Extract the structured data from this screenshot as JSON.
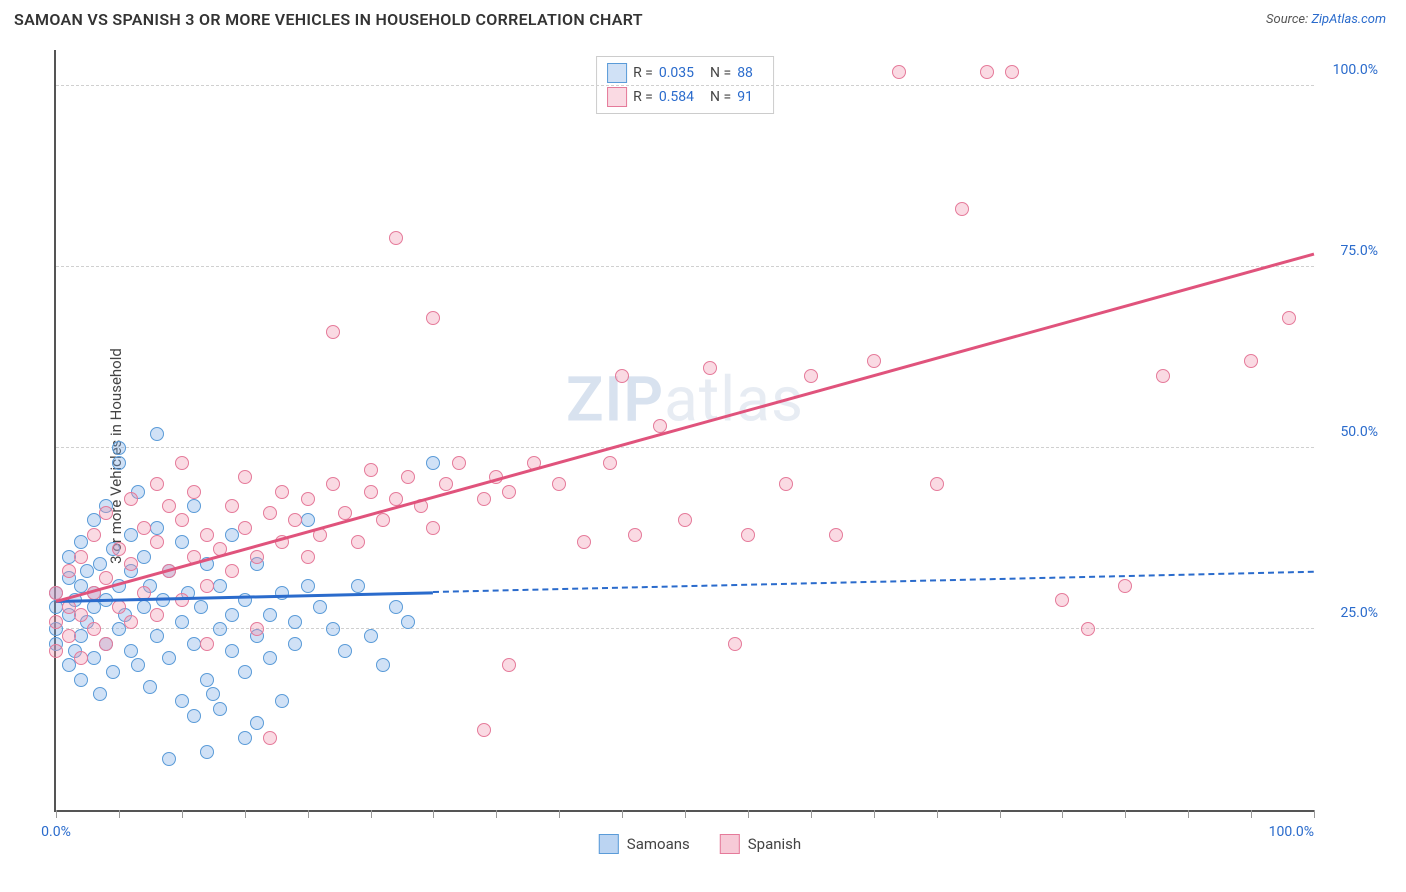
{
  "title": "SAMOAN VS SPANISH 3 OR MORE VEHICLES IN HOUSEHOLD CORRELATION CHART",
  "source_label": "Source: ",
  "source_name": "ZipAtlas.com",
  "ylabel": "3 or more Vehicles in Household",
  "watermark_a": "ZIP",
  "watermark_b": "atlas",
  "chart": {
    "type": "scatter",
    "xlim": [
      0,
      100
    ],
    "ylim": [
      0,
      105
    ],
    "xtick_positions": [
      0,
      5,
      10,
      15,
      20,
      25,
      30,
      35,
      40,
      45,
      50,
      55,
      60,
      65,
      70,
      75,
      80,
      85,
      90,
      95,
      100
    ],
    "xtick_labels": {
      "0": "0.0%",
      "100": "100.0%"
    },
    "ygrid": [
      25,
      50,
      75,
      100
    ],
    "ytick_labels": {
      "25": "25.0%",
      "50": "50.0%",
      "75": "75.0%",
      "100": "100.0%"
    },
    "background": "#ffffff",
    "grid_color": "#d0d0d0",
    "axis_color": "#555555",
    "marker_radius": 7,
    "marker_stroke": 1.5,
    "series": [
      {
        "name": "Samoans",
        "fill": "rgba(120,170,230,0.35)",
        "stroke": "#5a9bd8",
        "R": "0.035",
        "N": "88",
        "trend": {
          "x1": 0,
          "y1": 29,
          "x2": 100,
          "y2": 33,
          "solid_until": 30,
          "color": "#2a6bcc"
        },
        "points": [
          [
            0,
            23
          ],
          [
            0,
            25
          ],
          [
            0,
            28
          ],
          [
            0,
            30
          ],
          [
            1,
            20
          ],
          [
            1,
            27
          ],
          [
            1,
            32
          ],
          [
            1,
            35
          ],
          [
            1.5,
            22
          ],
          [
            1.5,
            29
          ],
          [
            2,
            18
          ],
          [
            2,
            24
          ],
          [
            2,
            31
          ],
          [
            2,
            37
          ],
          [
            2.5,
            26
          ],
          [
            2.5,
            33
          ],
          [
            3,
            21
          ],
          [
            3,
            28
          ],
          [
            3,
            30
          ],
          [
            3,
            40
          ],
          [
            3.5,
            16
          ],
          [
            3.5,
            34
          ],
          [
            4,
            23
          ],
          [
            4,
            29
          ],
          [
            4,
            42
          ],
          [
            4.5,
            19
          ],
          [
            4.5,
            36
          ],
          [
            5,
            25
          ],
          [
            5,
            31
          ],
          [
            5,
            48
          ],
          [
            5,
            50
          ],
          [
            5.5,
            27
          ],
          [
            6,
            22
          ],
          [
            6,
            33
          ],
          [
            6,
            38
          ],
          [
            6.5,
            20
          ],
          [
            6.5,
            44
          ],
          [
            7,
            28
          ],
          [
            7,
            35
          ],
          [
            7.5,
            17
          ],
          [
            7.5,
            31
          ],
          [
            8,
            24
          ],
          [
            8,
            39
          ],
          [
            8,
            52
          ],
          [
            8.5,
            29
          ],
          [
            9,
            21
          ],
          [
            9,
            33
          ],
          [
            9,
            7
          ],
          [
            10,
            26
          ],
          [
            10,
            37
          ],
          [
            10,
            15
          ],
          [
            10.5,
            30
          ],
          [
            11,
            23
          ],
          [
            11,
            42
          ],
          [
            11,
            13
          ],
          [
            11.5,
            28
          ],
          [
            12,
            34
          ],
          [
            12,
            18
          ],
          [
            12,
            8
          ],
          [
            12.5,
            16
          ],
          [
            13,
            25
          ],
          [
            13,
            31
          ],
          [
            13,
            14
          ],
          [
            14,
            22
          ],
          [
            14,
            27
          ],
          [
            14,
            38
          ],
          [
            15,
            19
          ],
          [
            15,
            29
          ],
          [
            15,
            10
          ],
          [
            16,
            24
          ],
          [
            16,
            34
          ],
          [
            16,
            12
          ],
          [
            17,
            21
          ],
          [
            17,
            27
          ],
          [
            18,
            30
          ],
          [
            18,
            15
          ],
          [
            19,
            26
          ],
          [
            19,
            23
          ],
          [
            20,
            40
          ],
          [
            20,
            31
          ],
          [
            21,
            28
          ],
          [
            22,
            25
          ],
          [
            23,
            22
          ],
          [
            24,
            31
          ],
          [
            25,
            24
          ],
          [
            26,
            20
          ],
          [
            27,
            28
          ],
          [
            28,
            26
          ],
          [
            30,
            48
          ]
        ]
      },
      {
        "name": "Spanish",
        "fill": "rgba(240,150,175,0.35)",
        "stroke": "#e57a9a",
        "R": "0.584",
        "N": "91",
        "trend": {
          "x1": 0,
          "y1": 29,
          "x2": 100,
          "y2": 77,
          "solid_until": 100,
          "color": "#e0537c"
        },
        "points": [
          [
            0,
            22
          ],
          [
            0,
            26
          ],
          [
            0,
            30
          ],
          [
            1,
            24
          ],
          [
            1,
            28
          ],
          [
            1,
            33
          ],
          [
            2,
            21
          ],
          [
            2,
            27
          ],
          [
            2,
            35
          ],
          [
            3,
            25
          ],
          [
            3,
            30
          ],
          [
            3,
            38
          ],
          [
            4,
            23
          ],
          [
            4,
            32
          ],
          [
            4,
            41
          ],
          [
            5,
            28
          ],
          [
            5,
            36
          ],
          [
            6,
            26
          ],
          [
            6,
            34
          ],
          [
            6,
            43
          ],
          [
            7,
            30
          ],
          [
            7,
            39
          ],
          [
            8,
            27
          ],
          [
            8,
            37
          ],
          [
            8,
            45
          ],
          [
            9,
            33
          ],
          [
            9,
            42
          ],
          [
            10,
            29
          ],
          [
            10,
            40
          ],
          [
            10,
            48
          ],
          [
            11,
            35
          ],
          [
            11,
            44
          ],
          [
            12,
            31
          ],
          [
            12,
            38
          ],
          [
            12,
            23
          ],
          [
            13,
            36
          ],
          [
            14,
            33
          ],
          [
            14,
            42
          ],
          [
            15,
            39
          ],
          [
            15,
            46
          ],
          [
            16,
            35
          ],
          [
            16,
            25
          ],
          [
            17,
            41
          ],
          [
            17,
            10
          ],
          [
            18,
            37
          ],
          [
            18,
            44
          ],
          [
            19,
            40
          ],
          [
            20,
            35
          ],
          [
            20,
            43
          ],
          [
            21,
            38
          ],
          [
            22,
            45
          ],
          [
            22,
            66
          ],
          [
            23,
            41
          ],
          [
            24,
            37
          ],
          [
            25,
            44
          ],
          [
            25,
            47
          ],
          [
            26,
            40
          ],
          [
            27,
            43
          ],
          [
            27,
            79
          ],
          [
            28,
            46
          ],
          [
            29,
            42
          ],
          [
            30,
            39
          ],
          [
            30,
            68
          ],
          [
            31,
            45
          ],
          [
            32,
            48
          ],
          [
            34,
            43
          ],
          [
            34,
            11
          ],
          [
            35,
            46
          ],
          [
            36,
            44
          ],
          [
            36,
            20
          ],
          [
            38,
            48
          ],
          [
            40,
            45
          ],
          [
            42,
            37
          ],
          [
            44,
            48
          ],
          [
            45,
            60
          ],
          [
            46,
            38
          ],
          [
            48,
            53
          ],
          [
            50,
            40
          ],
          [
            52,
            61
          ],
          [
            54,
            23
          ],
          [
            55,
            38
          ],
          [
            58,
            45
          ],
          [
            60,
            60
          ],
          [
            62,
            38
          ],
          [
            65,
            62
          ],
          [
            67,
            102
          ],
          [
            70,
            45
          ],
          [
            72,
            83
          ],
          [
            74,
            102
          ],
          [
            76,
            102
          ],
          [
            80,
            29
          ],
          [
            82,
            25
          ],
          [
            85,
            31
          ],
          [
            88,
            60
          ],
          [
            95,
            62
          ],
          [
            98,
            68
          ]
        ]
      }
    ]
  },
  "legend": {
    "items": [
      {
        "label": "Samoans",
        "fill": "rgba(120,170,230,0.5)",
        "stroke": "#5a9bd8"
      },
      {
        "label": "Spanish",
        "fill": "rgba(240,150,175,0.5)",
        "stroke": "#e57a9a"
      }
    ]
  }
}
